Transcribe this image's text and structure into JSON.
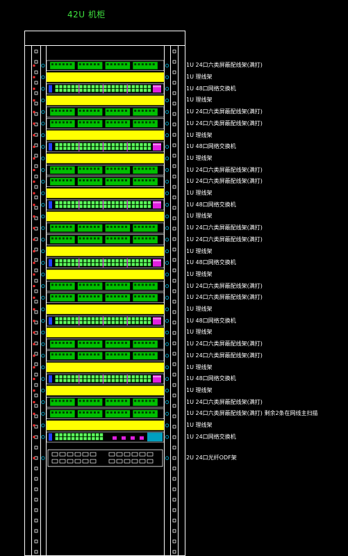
{
  "title": "42U 机柜",
  "colors": {
    "background": "#000000",
    "frame": "#ffffff",
    "patch_panel_green": "#00c000",
    "cable_manager_yellow": "#ffff00",
    "switch_magenta": "#e020e0",
    "port_green": "#60ff60",
    "odf_port": "#ffffff",
    "accent_cyan": "#00a0c0"
  },
  "units": [
    {
      "type": "patch",
      "label": "1U 24口六类屏蔽配线架(满打)"
    },
    {
      "type": "manager",
      "label": "1U 理线架"
    },
    {
      "type": "switch",
      "label": "1U 48口网络交换机"
    },
    {
      "type": "manager",
      "label": "1U 理线架"
    },
    {
      "type": "patch",
      "label": "1U 24口六类屏蔽配线架(满打)"
    },
    {
      "type": "patch",
      "label": "1U 24口六类屏蔽配线架(满打)"
    },
    {
      "type": "manager",
      "label": "1U 理线架"
    },
    {
      "type": "switch",
      "label": "1U 48口网络交换机"
    },
    {
      "type": "manager",
      "label": "1U 理线架"
    },
    {
      "type": "patch",
      "label": "1U 24口六类屏蔽配线架(满打)"
    },
    {
      "type": "patch",
      "label": "1U 24口六类屏蔽配线架(满打)"
    },
    {
      "type": "manager",
      "label": "1U 理线架"
    },
    {
      "type": "switch",
      "label": "1U 48口网络交换机"
    },
    {
      "type": "manager",
      "label": "1U 理线架"
    },
    {
      "type": "patch",
      "label": "1U 24口六类屏蔽配线架(满打)"
    },
    {
      "type": "patch",
      "label": "1U 24口六类屏蔽配线架(满打)"
    },
    {
      "type": "manager",
      "label": "1U 理线架"
    },
    {
      "type": "switch",
      "label": "1U 48口网络交换机"
    },
    {
      "type": "manager",
      "label": "1U 理线架"
    },
    {
      "type": "patch",
      "label": "1U 24口六类屏蔽配线架(满打)"
    },
    {
      "type": "patch",
      "label": "1U 24口六类屏蔽配线架(满打)"
    },
    {
      "type": "manager",
      "label": "1U 理线架"
    },
    {
      "type": "switch",
      "label": "1U 48口网络交换机"
    },
    {
      "type": "manager",
      "label": "1U 理线架"
    },
    {
      "type": "patch",
      "label": "1U 24口六类屏蔽配线架(满打)"
    },
    {
      "type": "patch",
      "label": "1U 24口六类屏蔽配线架(满打)"
    },
    {
      "type": "manager",
      "label": "1U 理线架"
    },
    {
      "type": "switch",
      "label": "1U 48口网络交换机"
    },
    {
      "type": "manager",
      "label": "1U 理线架"
    },
    {
      "type": "patch",
      "label": "1U 24口六类屏蔽配线架(满打)"
    },
    {
      "type": "patch",
      "label": "1U 24口六类屏蔽配线架(满打) 剩余2条在网线主扫描"
    },
    {
      "type": "manager",
      "label": "1U 理线架"
    },
    {
      "type": "switch24",
      "label": "1U 24口网络交换机"
    },
    {
      "type": "odf",
      "label": "2U 24口光纤ODF架"
    }
  ]
}
